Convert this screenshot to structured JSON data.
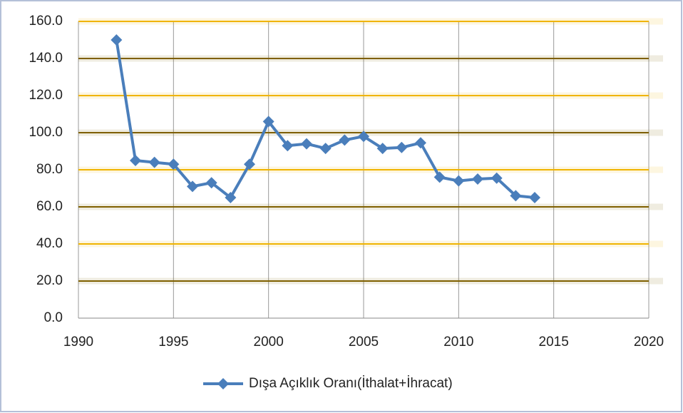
{
  "chart_data": {
    "type": "line",
    "x": [
      1992,
      1993,
      1994,
      1995,
      1996,
      1997,
      1998,
      1999,
      2000,
      2001,
      2002,
      2003,
      2004,
      2005,
      2006,
      2007,
      2008,
      2009,
      2010,
      2011,
      2012,
      2013,
      2014
    ],
    "series": [
      {
        "name": "Dışa Açıklık Oranı(İthalat+İhracat)",
        "color": "#4a7ebb",
        "values": [
          150,
          85,
          84,
          83,
          71,
          73,
          65,
          83,
          106,
          93,
          94,
          91.5,
          96,
          98,
          91.5,
          92,
          94.5,
          76,
          74,
          75,
          75.5,
          66,
          65
        ]
      }
    ],
    "xlim": [
      1990,
      2020
    ],
    "xticks": [
      1990,
      1995,
      2000,
      2005,
      2010,
      2015,
      2020
    ],
    "ylim": [
      0,
      160
    ],
    "yticks": [
      {
        "value": 0,
        "label": "0.0"
      },
      {
        "value": 20,
        "label": "20.0"
      },
      {
        "value": 40,
        "label": "40.0"
      },
      {
        "value": 60,
        "label": "60.0"
      },
      {
        "value": 80,
        "label": "80.0"
      },
      {
        "value": 100,
        "label": "100.0"
      },
      {
        "value": 120,
        "label": "120.0"
      },
      {
        "value": 140,
        "label": "140.0"
      },
      {
        "value": 160,
        "label": "160.0"
      }
    ],
    "grid": true,
    "grid_colors": [
      "#f0b400",
      "#7f6000"
    ],
    "legend": "bottom"
  }
}
